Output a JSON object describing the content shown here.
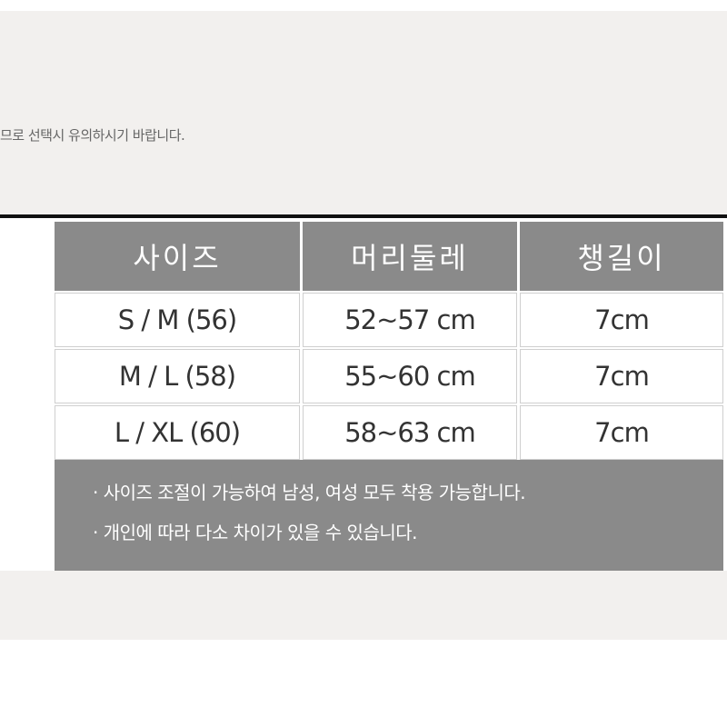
{
  "notice": "므로 선택시 유의하시기 바랍니다.",
  "table": {
    "headers": [
      "사이즈",
      "머리둘레",
      "챙길이"
    ],
    "rows": [
      [
        "S / M (56)",
        "52~57 cm",
        "7cm"
      ],
      [
        "M / L (58)",
        "55~60 cm",
        "7cm"
      ],
      [
        "L / XL (60)",
        "58~63 cm",
        "7cm"
      ]
    ]
  },
  "notes": [
    "· 사이즈 조절이 가능하여 남성, 여성 모두 착용 가능합니다.",
    "· 개인에 따라 다소 차이가 있을 수 있습니다."
  ]
}
